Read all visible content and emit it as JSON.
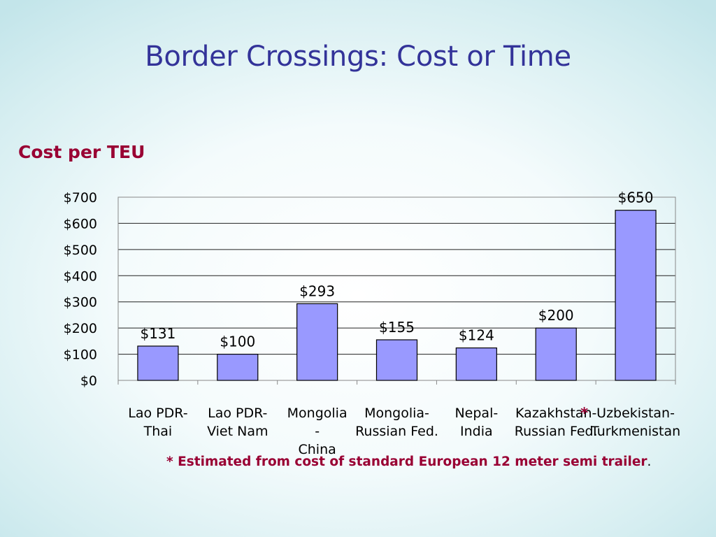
{
  "slide": {
    "title": "Border Crossings: Cost or Time",
    "footnote": "*  Estimated from cost of standard European 12 meter semi trailer",
    "footnote_end": "."
  },
  "chart_data": {
    "type": "bar",
    "title": "Cost per TEU",
    "categories": [
      [
        "Lao PDR-",
        "Thai"
      ],
      [
        "Lao PDR-",
        "Viet Nam"
      ],
      [
        "Mongolia",
        "-",
        "China"
      ],
      [
        "Mongolia-",
        "Russian Fed."
      ],
      [
        "Nepal-",
        "India"
      ],
      [
        "Kazakhstan-",
        "Russian Fed."
      ],
      [
        "Uzbekistan-",
        "Turkmenistan"
      ]
    ],
    "values": [
      131,
      100,
      293,
      155,
      124,
      200,
      650
    ],
    "data_labels": [
      "$131",
      "$100",
      "$293",
      "$155",
      "$124",
      "$200",
      "$650"
    ],
    "asterisk_marks": [
      "",
      "",
      "",
      "",
      "",
      "*",
      ""
    ],
    "ylim": [
      0,
      700
    ],
    "yticks": [
      0,
      100,
      200,
      300,
      400,
      500,
      600,
      700
    ],
    "ytick_labels": [
      "$0",
      "$100",
      "$200",
      "$300",
      "$400",
      "$500",
      "$600",
      "$700"
    ],
    "grid": true,
    "bar_color": "#9999ff",
    "asterisk_color": "#990033"
  }
}
